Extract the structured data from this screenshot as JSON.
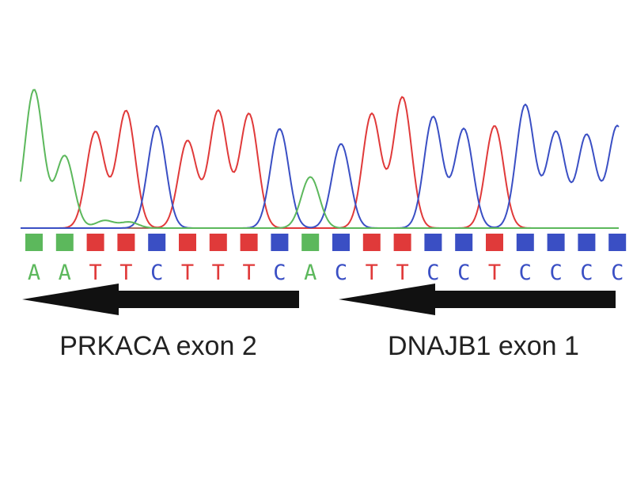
{
  "colors": {
    "A": "#5cb85c",
    "T": "#e03a3a",
    "C": "#3a4fc4",
    "G": "#222222",
    "arrow": "#111111",
    "text": "#222222",
    "baseline": "#8b3a2a"
  },
  "sequence": {
    "bases": [
      "A",
      "A",
      "T",
      "T",
      "C",
      "T",
      "T",
      "T",
      "C",
      "A",
      "C",
      "T",
      "T",
      "C",
      "C",
      "T",
      "C",
      "C",
      "C",
      "C"
    ],
    "peak_heights": [
      0.92,
      0.48,
      0.64,
      0.78,
      0.68,
      0.58,
      0.78,
      0.76,
      0.66,
      0.34,
      0.56,
      0.76,
      0.87,
      0.74,
      0.66,
      0.68,
      0.82,
      0.64,
      0.62,
      0.68
    ]
  },
  "segments": [
    {
      "label": "PRKACA exon 2",
      "direction": "left"
    },
    {
      "label": "DNAJB1 exon 1",
      "direction": "left"
    }
  ]
}
